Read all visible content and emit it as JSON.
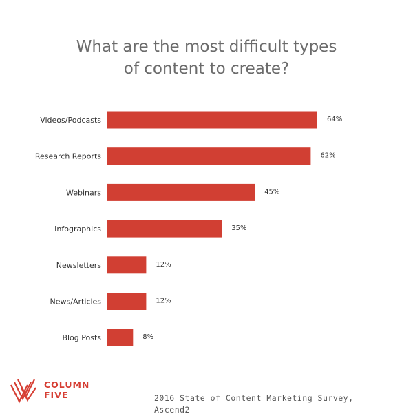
{
  "chart_data": {
    "type": "bar",
    "orientation": "horizontal",
    "title_lines": [
      "What are the most difficult types",
      "of content to create?"
    ],
    "categories": [
      "Videos/Podcasts",
      "Research Reports",
      "Webinars",
      "Infographics",
      "Newsletters",
      "News/Articles",
      "Blog Posts"
    ],
    "values": [
      64,
      62,
      45,
      35,
      12,
      12,
      8
    ],
    "value_labels": [
      "64%",
      "62%",
      "45%",
      "35%",
      "12%",
      "12%",
      "8%"
    ],
    "unit": "%",
    "xlim": [
      0,
      64
    ],
    "grid": false,
    "bar_color": "#d13f33"
  },
  "branding": {
    "logo_line1": "COLUMN",
    "logo_line2": "FIVE",
    "logo_icon": "column-five-chevron-icon",
    "logo_color": "#d63e33"
  },
  "source": {
    "line1": "2016 State of Content Marketing Survey,",
    "line2": "Ascend2"
  }
}
